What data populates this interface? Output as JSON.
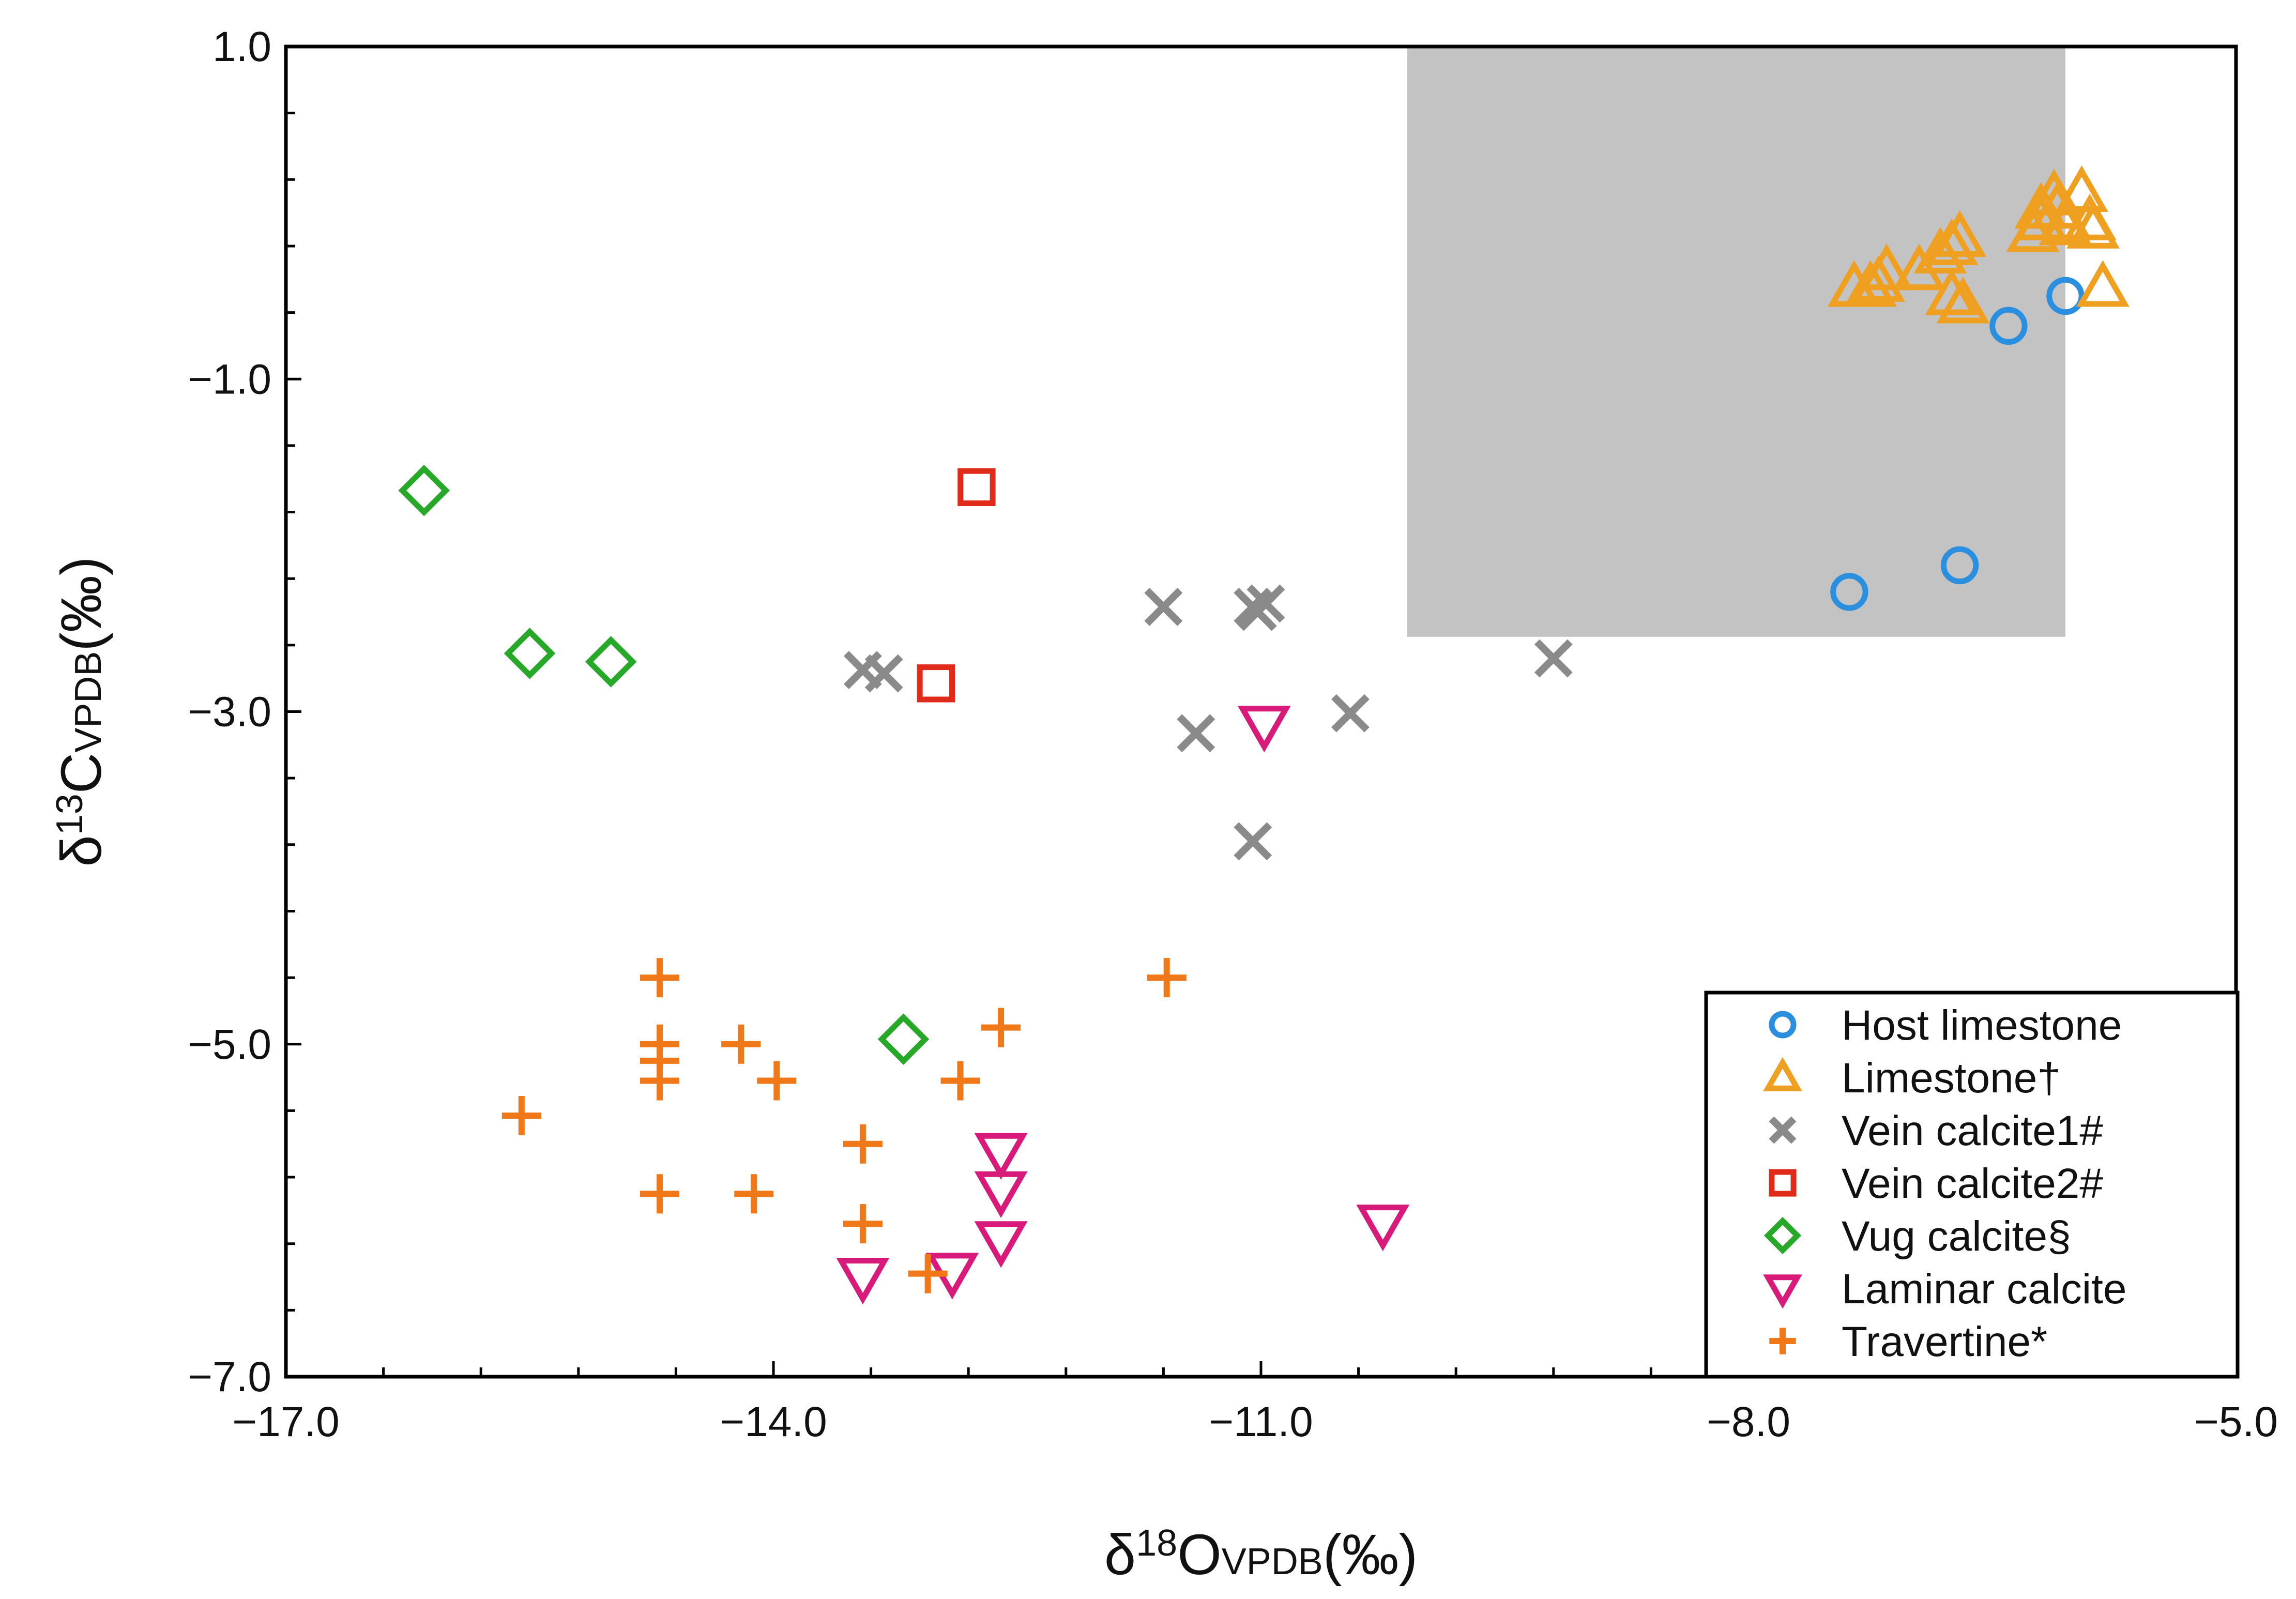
{
  "chart_data": {
    "type": "scatter",
    "title": "",
    "xlabel": {
      "prefix": "δ",
      "sup": "18",
      "element": "O",
      "sub": "VPDB",
      "unit": "(‰)"
    },
    "ylabel": {
      "prefix": "δ",
      "sup": "13",
      "element": "C",
      "sub": "VPDB",
      "unit": "(‰)"
    },
    "xlim": [
      -17.0,
      -5.0
    ],
    "ylim": [
      -7.0,
      1.0
    ],
    "x_ticks": [
      -17.0,
      -14.0,
      -11.0,
      -8.0,
      -5.0
    ],
    "x_tick_labels": [
      "−17.0",
      "−14.0",
      "−11.0",
      "−8.0",
      "−5.0"
    ],
    "y_ticks": [
      1.0,
      -1.0,
      -3.0,
      -5.0,
      -7.0
    ],
    "y_tick_labels": [
      "1.0",
      "−1.0",
      "−3.0",
      "−5.0",
      "−7.0"
    ],
    "x_minor_step": 0.6,
    "y_minor_step": 0.4,
    "shaded_region": {
      "x": [
        -10.1,
        -6.05
      ],
      "y": [
        -2.55,
        1.0
      ],
      "color": "#c4c3c4"
    },
    "legend_position": "bottom-right",
    "series": [
      {
        "name": "Host limestone",
        "marker": "circle",
        "color": "#2b8fe0",
        "points": [
          [
            -6.05,
            -0.5
          ],
          [
            -6.4,
            -0.68
          ],
          [
            -6.7,
            -2.12
          ],
          [
            -7.38,
            -2.28
          ]
        ]
      },
      {
        "name": "Limestone†",
        "marker": "triangle-up",
        "color": "#f0a020",
        "points": [
          [
            -6.12,
            0.1
          ],
          [
            -5.95,
            0.12
          ],
          [
            -6.2,
            0.02
          ],
          [
            -6.1,
            0.02
          ],
          [
            -5.9,
            -0.05
          ],
          [
            -6.2,
            -0.05
          ],
          [
            -6.05,
            -0.08
          ],
          [
            -6.05,
            -0.05
          ],
          [
            -5.88,
            -0.1
          ],
          [
            -6.25,
            -0.12
          ],
          [
            -6.7,
            -0.15
          ],
          [
            -6.75,
            -0.2
          ],
          [
            -6.82,
            -0.25
          ],
          [
            -6.95,
            -0.35
          ],
          [
            -7.15,
            -0.35
          ],
          [
            -7.25,
            -0.45
          ],
          [
            -7.35,
            -0.45
          ],
          [
            -7.2,
            -0.42
          ],
          [
            -6.75,
            -0.5
          ],
          [
            -6.68,
            -0.55
          ],
          [
            -5.82,
            -0.45
          ]
        ]
      },
      {
        "name": "Vein calcite1#",
        "marker": "x",
        "color": "#8a8a8a",
        "points": [
          [
            -11.6,
            -2.37
          ],
          [
            -11.05,
            -2.37
          ],
          [
            -10.97,
            -2.35
          ],
          [
            -11.02,
            -2.4
          ],
          [
            -9.2,
            -2.68
          ],
          [
            -13.45,
            -2.75
          ],
          [
            -13.32,
            -2.77
          ],
          [
            -11.4,
            -3.13
          ],
          [
            -10.45,
            -3.01
          ],
          [
            -11.05,
            -3.78
          ]
        ]
      },
      {
        "name": "Vein calcite2#",
        "marker": "square",
        "color": "#e02a1a",
        "points": [
          [
            -12.75,
            -1.65
          ],
          [
            -13.0,
            -2.83
          ]
        ]
      },
      {
        "name": "Vug calcite§",
        "marker": "diamond",
        "color": "#28a828",
        "points": [
          [
            -16.15,
            -1.67
          ],
          [
            -15.5,
            -2.65
          ],
          [
            -15.0,
            -2.7
          ],
          [
            -13.2,
            -4.97
          ]
        ]
      },
      {
        "name": "Laminar calcite",
        "marker": "triangle-down",
        "color": "#d81b7b",
        "points": [
          [
            -10.98,
            -3.08
          ],
          [
            -10.25,
            -6.08
          ],
          [
            -12.6,
            -5.65
          ],
          [
            -12.6,
            -5.88
          ],
          [
            -12.6,
            -6.18
          ],
          [
            -13.45,
            -6.4
          ],
          [
            -12.9,
            -6.37
          ]
        ]
      },
      {
        "name": "Travertine*",
        "marker": "plus",
        "color": "#f07818",
        "points": [
          [
            -14.7,
            -4.6
          ],
          [
            -14.7,
            -5.0
          ],
          [
            -14.7,
            -5.1
          ],
          [
            -14.7,
            -5.22
          ],
          [
            -14.2,
            -5.0
          ],
          [
            -13.98,
            -5.22
          ],
          [
            -15.55,
            -5.43
          ],
          [
            -13.45,
            -5.6
          ],
          [
            -13.45,
            -6.08
          ],
          [
            -14.7,
            -5.9
          ],
          [
            -14.12,
            -5.9
          ],
          [
            -13.05,
            -6.38
          ],
          [
            -12.85,
            -5.22
          ],
          [
            -12.6,
            -4.9
          ],
          [
            -11.58,
            -4.6
          ]
        ]
      }
    ]
  }
}
